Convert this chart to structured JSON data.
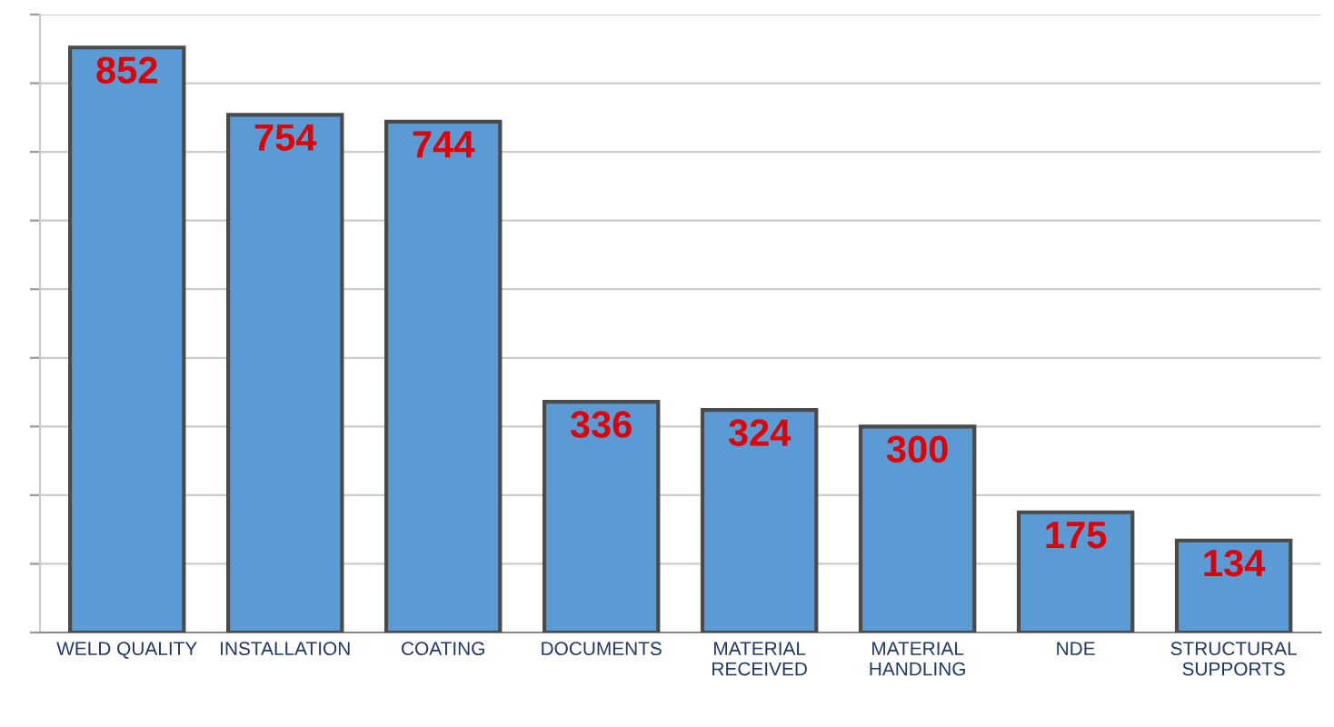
{
  "chart_data": {
    "type": "bar",
    "categories": [
      "WELD QUALITY",
      "INSTALLATION",
      "COATING",
      "DOCUMENTS",
      "MATERIAL\nRECEIVED",
      "MATERIAL\nHANDLING",
      "NDE",
      "STRUCTURAL\nSUPPORTS"
    ],
    "values": [
      852,
      754,
      744,
      336,
      324,
      300,
      175,
      134
    ],
    "color": "#5b9bd5",
    "ylim": [
      0,
      900
    ],
    "yticks": [
      {
        "value": 0,
        "label": null
      },
      {
        "value": 100,
        "label": null
      },
      {
        "value": 200,
        "label": null
      },
      {
        "value": 300,
        "label": null
      },
      {
        "value": 400,
        "label": null
      },
      {
        "value": 500,
        "label": null
      },
      {
        "value": 600,
        "label": null
      },
      {
        "value": 700,
        "label": null
      },
      {
        "value": 800,
        "label": null
      },
      {
        "value": 900,
        "label": null
      }
    ],
    "grid": "y",
    "data_labels": true,
    "tick_labels": "x"
  }
}
